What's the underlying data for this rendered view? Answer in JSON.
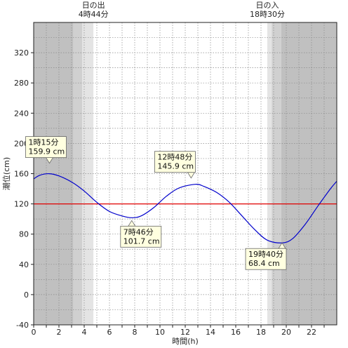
{
  "chart_data": {
    "type": "line",
    "xlabel": "時間(h)",
    "ylabel": "潮位(cm)",
    "xlim": [
      0,
      24
    ],
    "ylim": [
      -40,
      360
    ],
    "x_ticks": [
      0,
      2,
      4,
      6,
      8,
      10,
      12,
      14,
      16,
      18,
      20,
      22
    ],
    "y_ticks": [
      -40,
      0,
      40,
      80,
      120,
      160,
      200,
      240,
      280,
      320
    ],
    "grid": true,
    "reference_line": {
      "y": 120,
      "color": "#e00000"
    },
    "sunrise": {
      "label": "日の出",
      "time_label": "4時44分",
      "hour": 4.733
    },
    "sunset": {
      "label": "日の入",
      "time_label": "18時30分",
      "hour": 18.5
    },
    "series": [
      {
        "color": "#0000cc",
        "x": [
          0,
          0.5,
          1.25,
          2,
          3,
          4,
          5,
          6,
          7,
          7.767,
          8.5,
          9.5,
          10.5,
          11.5,
          12.8,
          13.5,
          14.5,
          15.5,
          16.5,
          17.5,
          18.5,
          19.67,
          20.5,
          21.5,
          22.5,
          23.5,
          24
        ],
        "y": [
          153,
          158,
          159.9,
          157,
          149,
          137,
          122,
          110,
          104,
          101.7,
          104,
          115,
          130,
          141,
          145.9,
          143,
          135,
          122,
          104,
          86,
          72,
          68.4,
          74,
          93,
          117,
          140,
          150
        ]
      }
    ],
    "annotations": [
      {
        "time": "1時15分",
        "value": "159.9 cm",
        "hour": 1.25,
        "level": 159.9
      },
      {
        "time": "7時46分",
        "value": "101.7 cm",
        "hour": 7.767,
        "level": 101.7
      },
      {
        "time": "12時48分",
        "value": "145.9 cm",
        "hour": 12.8,
        "level": 145.9
      },
      {
        "time": "19時40分",
        "value": "68.4 cm",
        "hour": 19.667,
        "level": 68.4
      }
    ]
  },
  "colors": {
    "night": "#c0c0c0",
    "twilight_dark": "#d0d0d0",
    "twilight_light": "#e4e4e4",
    "day": "#ffffff",
    "grid": "#8a8a8a",
    "note_bg": "#ffffe0"
  }
}
